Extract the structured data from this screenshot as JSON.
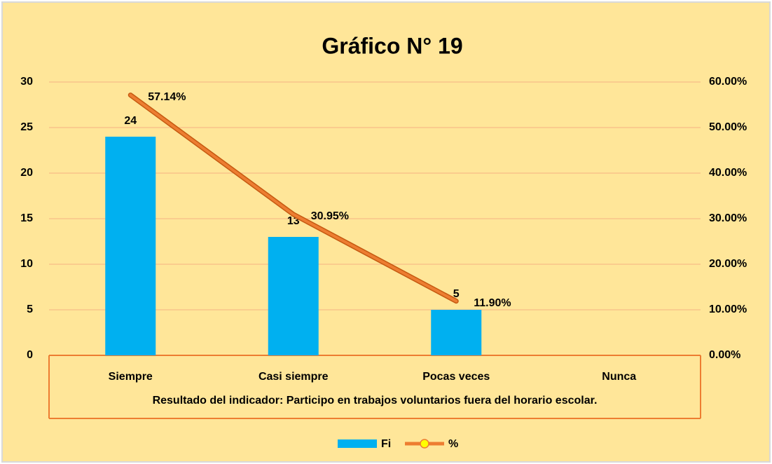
{
  "chart_data": {
    "type": "bar-line",
    "title": "Gráfico N° 19",
    "x_label": "Resultado del indicador:  Participo en trabajos voluntarios fuera del horario escolar.",
    "categories": [
      "Siempre",
      "Casi siempre",
      "Pocas veces",
      "Nunca"
    ],
    "series": [
      {
        "name": "Fi",
        "color": "#00b0f0",
        "type": "bar",
        "values": [
          24,
          13,
          5,
          null
        ]
      },
      {
        "name": "%",
        "color": "#ed7d31",
        "type": "line",
        "axis": "y2",
        "values": [
          57.14,
          30.95,
          11.9,
          null
        ],
        "value_labels": [
          "57.14%",
          "30.95%",
          "11.90%",
          null
        ]
      }
    ],
    "ylim": [
      0,
      30
    ],
    "yticks": [
      0,
      5,
      10,
      15,
      20,
      25,
      30
    ],
    "y2lim": [
      0,
      60
    ],
    "y2ticks": [
      {
        "value": 0,
        "label": "0.00%"
      },
      {
        "value": 10,
        "label": "10.00%"
      },
      {
        "value": 20,
        "label": "20.00%"
      },
      {
        "value": 30,
        "label": "30.00%"
      },
      {
        "value": 40,
        "label": "40.00%"
      },
      {
        "value": 50,
        "label": "50.00%"
      },
      {
        "value": 60,
        "label": "60.00%"
      }
    ],
    "grid": true,
    "legend": "bottom"
  }
}
